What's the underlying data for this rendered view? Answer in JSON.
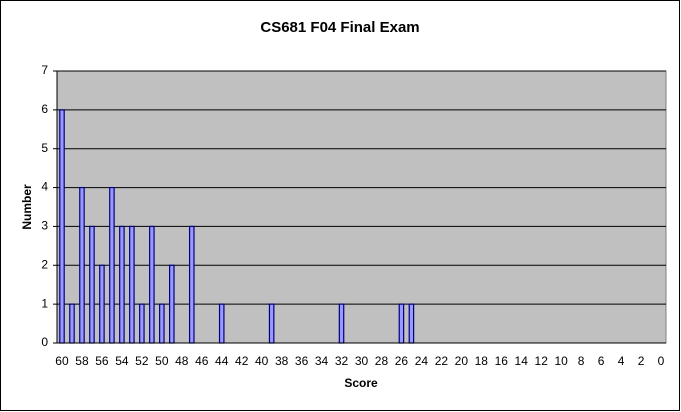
{
  "chart_data": {
    "type": "bar",
    "title": "CS681 F04 Final Exam",
    "x_label": "Score",
    "y_label": "Number",
    "categories": [
      "60",
      null,
      "58",
      null,
      "56",
      null,
      "54",
      null,
      "52",
      null,
      "50",
      null,
      "48",
      null,
      "46",
      null,
      "44",
      null,
      "42",
      null,
      "40",
      null,
      "38",
      null,
      "36",
      null,
      "34",
      null,
      "32",
      null,
      "30",
      null,
      "28",
      null,
      "26",
      null,
      "24",
      null,
      "22",
      null,
      "20",
      null,
      "18",
      null,
      "16",
      null,
      "14",
      null,
      "12",
      null,
      "10",
      null,
      "8",
      null,
      "6",
      null,
      "4",
      null,
      "2",
      null,
      "0"
    ],
    "values": [
      6,
      1,
      4,
      3,
      2,
      4,
      3,
      3,
      1,
      3,
      1,
      2,
      0,
      3,
      0,
      0,
      1,
      0,
      0,
      0,
      0,
      1,
      0,
      0,
      0,
      0,
      0,
      0,
      1,
      0,
      0,
      0,
      0,
      0,
      1,
      1,
      0,
      0,
      0,
      0,
      0,
      0,
      0,
      0,
      0,
      0,
      0,
      0,
      0,
      0,
      0,
      0,
      0,
      0,
      0,
      0,
      0,
      0,
      0,
      0,
      0
    ],
    "color": "#9999ff",
    "ylim": [
      0,
      7
    ],
    "yticks": [
      0,
      1,
      2,
      3,
      4,
      5,
      6,
      7
    ],
    "grid": true
  }
}
